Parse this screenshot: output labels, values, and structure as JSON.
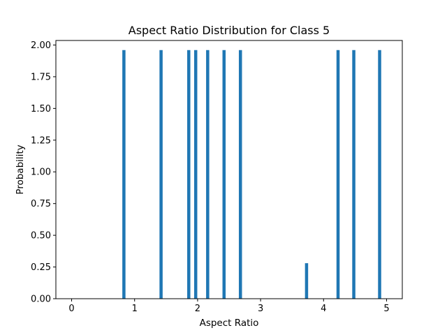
{
  "chart_data": {
    "type": "bar",
    "title": "Aspect Ratio Distribution for Class 5",
    "xlabel": "Aspect Ratio",
    "ylabel": "Probability",
    "xlim": [
      -0.25,
      5.25
    ],
    "ylim": [
      0.0,
      2.0357
    ],
    "xticks": [
      0,
      1,
      2,
      3,
      4,
      5
    ],
    "xtick_labels": [
      "0",
      "1",
      "2",
      "3",
      "4",
      "5"
    ],
    "yticks": [
      0.0,
      0.25,
      0.5,
      0.75,
      1.0,
      1.25,
      1.5,
      1.75,
      2.0
    ],
    "ytick_labels": [
      "0.00",
      "0.25",
      "0.50",
      "0.75",
      "1.00",
      "1.25",
      "1.50",
      "1.75",
      "2.00"
    ],
    "bar_width": 0.05,
    "series": [
      {
        "x": [
          0.83,
          1.42,
          1.86,
          1.97,
          2.16,
          2.42,
          2.68,
          3.73,
          4.23,
          4.48,
          4.89
        ],
        "values": [
          1.96,
          1.96,
          1.96,
          1.96,
          1.96,
          1.96,
          1.96,
          0.28,
          1.96,
          1.96,
          1.96
        ]
      }
    ],
    "grid": false,
    "legend": false,
    "colors": {
      "bar": "#1f77b4",
      "axis": "#000000",
      "background": "#ffffff"
    }
  }
}
